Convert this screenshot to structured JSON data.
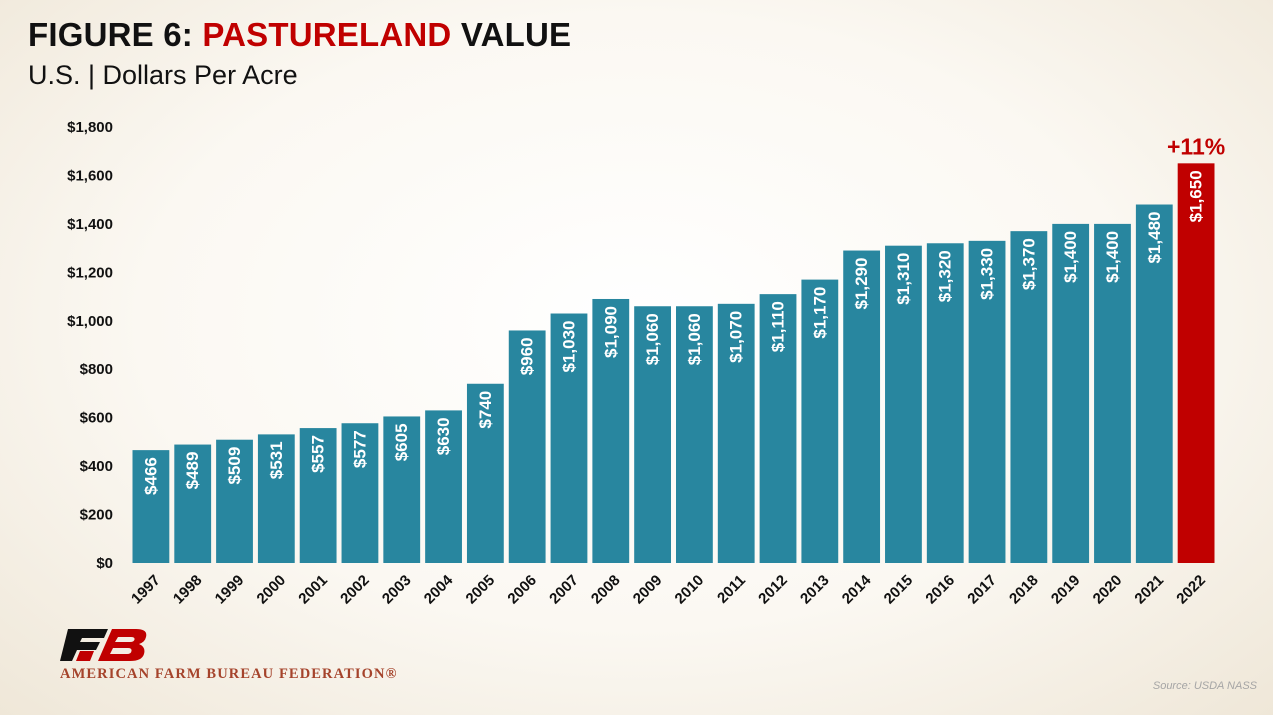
{
  "header": {
    "title_prefix": "FIGURE 6: ",
    "title_highlight": "PASTURELAND",
    "title_suffix": " VALUE",
    "subtitle": "U.S. | Dollars Per Acre"
  },
  "chart_data": {
    "type": "bar",
    "title": "FIGURE 6: PASTURELAND VALUE",
    "subtitle": "U.S. | Dollars Per Acre",
    "xlabel": "",
    "ylabel": "",
    "categories": [
      "1997",
      "1998",
      "1999",
      "2000",
      "2001",
      "2002",
      "2003",
      "2004",
      "2005",
      "2006",
      "2007",
      "2008",
      "2009",
      "2010",
      "2011",
      "2012",
      "2013",
      "2014",
      "2015",
      "2016",
      "2017",
      "2018",
      "2019",
      "2020",
      "2021",
      "2022"
    ],
    "values": [
      466,
      489,
      509,
      531,
      557,
      577,
      605,
      630,
      740,
      960,
      1030,
      1090,
      1060,
      1060,
      1070,
      1110,
      1170,
      1290,
      1310,
      1320,
      1330,
      1370,
      1400,
      1400,
      1480,
      1650
    ],
    "data_labels": [
      "$466",
      "$489",
      "$509",
      "$531",
      "$557",
      "$577",
      "$605",
      "$630",
      "$740",
      "$960",
      "$1,030",
      "$1,090",
      "$1,060",
      "$1,060",
      "$1,070",
      "$1,110",
      "$1,170",
      "$1,290",
      "$1,310",
      "$1,320",
      "$1,330",
      "$1,370",
      "$1,400",
      "$1,400",
      "$1,480",
      "$1,650"
    ],
    "ylim": [
      0,
      1800
    ],
    "yticks": [
      0,
      200,
      400,
      600,
      800,
      1000,
      1200,
      1400,
      1600,
      1800
    ],
    "ytick_labels": [
      "$0",
      "$200",
      "$400",
      "$600",
      "$800",
      "$1,000",
      "$1,200",
      "$1,400",
      "$1,600",
      "$1,800"
    ],
    "grid": false,
    "colors": {
      "default": "#28869f",
      "highlight": "#c00000"
    },
    "highlight_index": 25,
    "annotation": {
      "text": "+11%",
      "index": 25,
      "color": "#c00000"
    }
  },
  "footer": {
    "logo_icon": "afbf-logo-icon",
    "logo_color": "#c00000",
    "logo_dark": "#111111",
    "org_name": "AMERICAN FARM BUREAU FEDERATION®",
    "source": "Source: USDA NASS"
  }
}
